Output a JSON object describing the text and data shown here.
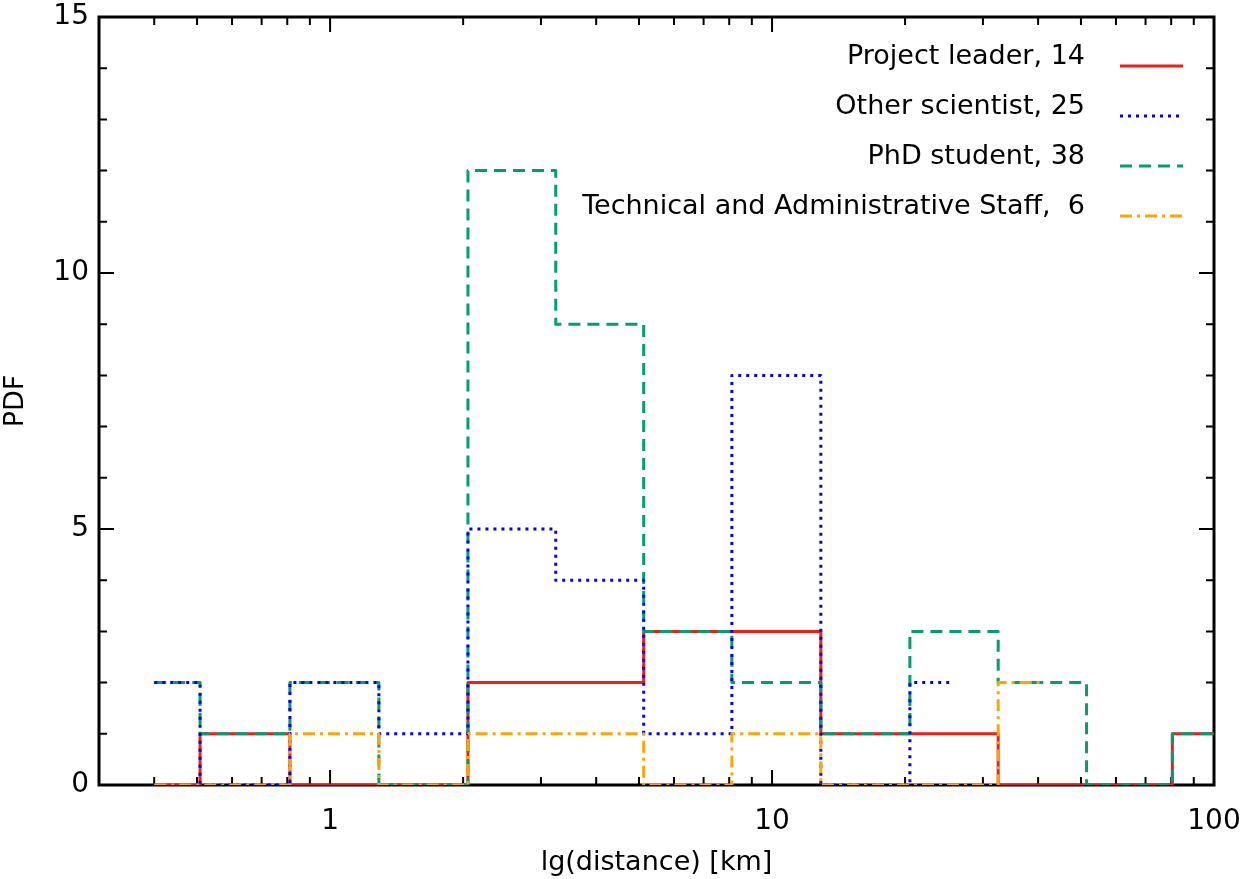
{
  "chart_data": {
    "type": "step",
    "xlabel": "lg(distance) [km]",
    "ylabel": "PDF",
    "log": "x",
    "legend": "top right",
    "x": [
      0.4,
      0.645,
      1.02,
      1.63,
      2.58,
      4.07,
      6.45,
      10.2,
      16.3,
      25.8,
      40.9,
      64.8,
      100
    ],
    "series": [
      {
        "name": "Project leader, 14",
        "color": "#f01e14",
        "line_style": "solid",
        "values": [
          0,
          1,
          0,
          0,
          2,
          2,
          3,
          3,
          1,
          1,
          0,
          0,
          1
        ]
      },
      {
        "name": "Other scientist, 25",
        "color": "#0000ff",
        "line_style": "dotted",
        "values": [
          2,
          0,
          2,
          1,
          5,
          4,
          1,
          8,
          0,
          2,
          null,
          null,
          null
        ]
      },
      {
        "name": "PhD student, 38",
        "color": "#009e73",
        "line_style": "dashed",
        "values": [
          2,
          1,
          2,
          0,
          12,
          9,
          3,
          2,
          1,
          3,
          2,
          0,
          1
        ]
      },
      {
        "name": "Technical and Administrative Staff,  6",
        "color": "#ffa500",
        "line_style": "dashdot",
        "values": [
          0,
          0,
          1,
          0,
          1,
          1,
          0,
          1,
          0,
          0,
          2,
          null,
          null
        ]
      }
    ],
    "xlim": [
      0.3,
      100
    ],
    "xticks": [
      {
        "value": 0.4,
        "label": null
      },
      {
        "value": 0.5,
        "label": null
      },
      {
        "value": 0.6,
        "label": null
      },
      {
        "value": 0.7,
        "label": null
      },
      {
        "value": 0.8,
        "label": null
      },
      {
        "value": 0.9,
        "label": null
      },
      1,
      {
        "value": 2,
        "label": null
      },
      {
        "value": 3,
        "label": null
      },
      {
        "value": 4,
        "label": null
      },
      {
        "value": 5,
        "label": null
      },
      {
        "value": 6,
        "label": null
      },
      {
        "value": 7,
        "label": null
      },
      {
        "value": 8,
        "label": null
      },
      {
        "value": 9,
        "label": null
      },
      10,
      {
        "value": 20,
        "label": null
      },
      {
        "value": 30,
        "label": null
      },
      {
        "value": 40,
        "label": null
      },
      {
        "value": 50,
        "label": null
      },
      {
        "value": 60,
        "label": null
      },
      {
        "value": 70,
        "label": null
      },
      {
        "value": 80,
        "label": null
      },
      {
        "value": 90,
        "label": null
      },
      100
    ],
    "ylim": [
      0,
      15
    ],
    "yticks": [
      0,
      {
        "value": 1,
        "label": null
      },
      {
        "value": 2,
        "label": null
      },
      {
        "value": 3,
        "label": null
      },
      {
        "value": 4,
        "label": null
      },
      5,
      {
        "value": 6,
        "label": null
      },
      {
        "value": 7,
        "label": null
      },
      {
        "value": 8,
        "label": null
      },
      {
        "value": 9,
        "label": null
      },
      10,
      {
        "value": 11,
        "label": null
      },
      {
        "value": 12,
        "label": null
      },
      {
        "value": 13,
        "label": null
      },
      {
        "value": 14,
        "label": null
      },
      15
    ]
  }
}
